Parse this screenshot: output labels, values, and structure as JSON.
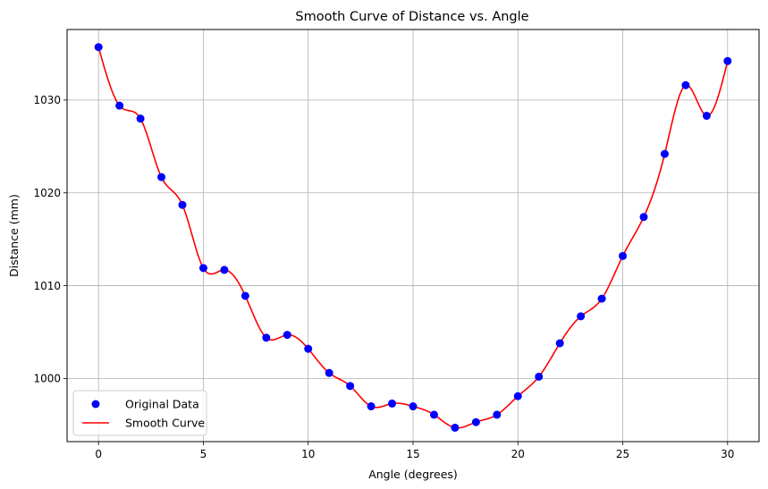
{
  "chart_data": {
    "type": "line",
    "title": "Smooth Curve of Distance vs. Angle",
    "xlabel": "Angle (degrees)",
    "ylabel": "Distance (mm)",
    "xlim": [
      -1.5,
      31.5
    ],
    "ylim": [
      993.2,
      1037.6
    ],
    "xticks": [
      0,
      5,
      10,
      15,
      20,
      25,
      30
    ],
    "yticks": [
      1000,
      1010,
      1020,
      1030
    ],
    "grid": true,
    "legend_position": "lower-left",
    "series": [
      {
        "name": "Original Data",
        "style": "markers",
        "color": "#0000ff",
        "x": [
          0,
          1,
          2,
          3,
          4,
          5,
          6,
          7,
          8,
          9,
          10,
          11,
          12,
          13,
          14,
          15,
          16,
          17,
          18,
          19,
          20,
          21,
          22,
          23,
          24,
          25,
          26,
          27,
          28,
          29,
          30
        ],
        "values": [
          1035.7,
          1029.4,
          1028.0,
          1021.7,
          1018.7,
          1011.9,
          1011.7,
          1008.9,
          1004.4,
          1004.7,
          1003.2,
          1000.6,
          999.2,
          997.0,
          997.3,
          997.0,
          996.1,
          994.7,
          995.3,
          996.1,
          998.1,
          1000.2,
          1003.8,
          1006.7,
          1008.6,
          1013.2,
          1017.4,
          1024.2,
          1031.6,
          1028.3,
          1034.2
        ]
      },
      {
        "name": "Smooth Curve",
        "style": "line",
        "color": "#ff0000",
        "x": [
          0,
          1,
          2,
          3,
          4,
          5,
          6,
          7,
          8,
          9,
          10,
          11,
          12,
          13,
          14,
          15,
          16,
          17,
          18,
          19,
          20,
          21,
          22,
          23,
          24,
          25,
          26,
          27,
          28,
          29,
          30
        ],
        "values": [
          1035.7,
          1029.4,
          1028.0,
          1021.7,
          1018.7,
          1011.9,
          1011.7,
          1008.9,
          1004.4,
          1004.7,
          1003.2,
          1000.6,
          999.2,
          997.0,
          997.3,
          997.0,
          996.1,
          994.7,
          995.3,
          996.1,
          998.1,
          1000.2,
          1003.8,
          1006.7,
          1008.6,
          1013.2,
          1017.4,
          1024.2,
          1031.6,
          1028.3,
          1034.2
        ]
      }
    ]
  }
}
